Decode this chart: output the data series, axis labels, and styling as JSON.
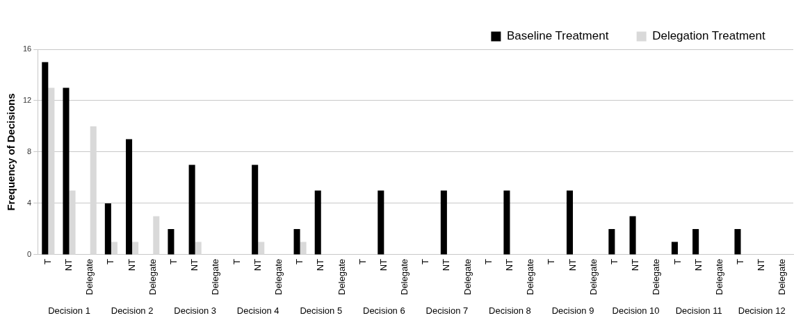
{
  "chart_data": {
    "type": "bar",
    "ylabel": "Frequency of Decisions",
    "categories": [
      "T",
      "NT",
      "Delegate",
      "T",
      "NT",
      "Delegate",
      "T",
      "NT",
      "Delegate",
      "T",
      "NT",
      "Delegate",
      "T",
      "NT",
      "Delegate",
      "T",
      "NT",
      "Delegate",
      "T",
      "NT",
      "Delegate",
      "T",
      "NT",
      "Delegate",
      "T",
      "NT",
      "Delegate",
      "T",
      "NT",
      "Delegate",
      "T",
      "NT",
      "Delegate",
      "T",
      "NT",
      "Delegate"
    ],
    "series": [
      {
        "name": "Baseline Treatment",
        "color": "#000000",
        "values": [
          15,
          13,
          0,
          4,
          9,
          0,
          2,
          7,
          0,
          0,
          7,
          0,
          2,
          5,
          0,
          0,
          5,
          0,
          0,
          5,
          0,
          0,
          5,
          0,
          0,
          5,
          0,
          2,
          3,
          0,
          1,
          2,
          0,
          2,
          0,
          0
        ]
      },
      {
        "name": "Delegation Treatment",
        "color": "#d9d9d9",
        "values": [
          13,
          5,
          10,
          1,
          1,
          3,
          0,
          1,
          0,
          0,
          1,
          0,
          1,
          0,
          0,
          0,
          0,
          0,
          0,
          0,
          0,
          0,
          0,
          0,
          0,
          0,
          0,
          0,
          0,
          0,
          0,
          0,
          0,
          0,
          0,
          0
        ]
      }
    ],
    "annotations": [
      "Decision 1",
      "Decision 2",
      "Decision 3",
      "Decision 4",
      "Decision 5",
      "Decision 6",
      "Decision 7",
      "Decision 8",
      "Decision 9",
      "Decision 10",
      "Decision 11",
      "Decision 12"
    ],
    "ylim": [
      0,
      16
    ],
    "yticks": [
      0,
      4,
      8,
      12,
      16
    ],
    "grid": "y",
    "legend": "top right"
  }
}
